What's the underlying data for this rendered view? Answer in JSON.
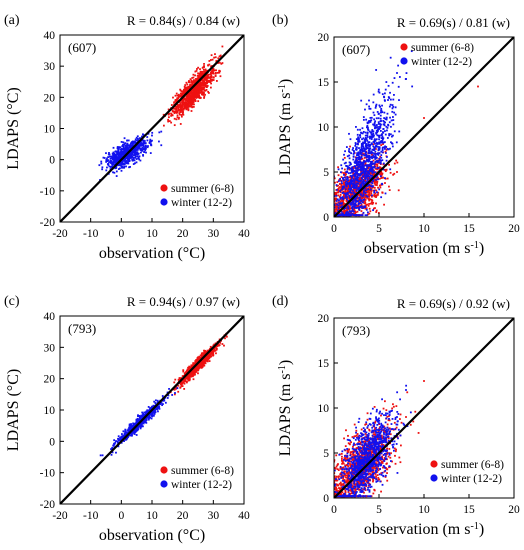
{
  "colors": {
    "summer": "#ee1111",
    "winter": "#1111ee",
    "axis": "#000000",
    "identity_line": "#000000"
  },
  "chart_data": [
    {
      "type": "scatter",
      "panel_label": "(a)",
      "station": "(607)",
      "r_text": "R = 0.84(s) / 0.84 (w)",
      "xlabel": "observation (°C)",
      "ylabel": "LDAPS (°C)",
      "xlim": [
        -20,
        40
      ],
      "ylim": [
        -20,
        40
      ],
      "xticks": [
        -20,
        -10,
        0,
        10,
        20,
        30,
        40
      ],
      "yticks": [
        -20,
        -10,
        0,
        10,
        20,
        30,
        40
      ],
      "legend_position": "bottom-right",
      "identity_line": true,
      "series": [
        {
          "name": "summer (6-8)",
          "color": "#ee1111",
          "center": [
            23.5,
            22
          ],
          "spread": [
            3.5,
            2.2
          ],
          "slope": 0.95,
          "count": 900,
          "sample_points": [
            [
              18,
              17
            ],
            [
              22,
              20
            ],
            [
              25,
              23
            ],
            [
              28,
              26
            ],
            [
              30,
              28
            ],
            [
              20,
              19
            ],
            [
              26,
              24
            ]
          ]
        },
        {
          "name": "winter (12-2)",
          "color": "#1111ee",
          "center": [
            2,
            2
          ],
          "spread": [
            3.5,
            1.8
          ],
          "slope": 0.5,
          "count": 700,
          "sample_points": [
            [
              -6,
              -6
            ],
            [
              -2,
              0
            ],
            [
              0,
              2
            ],
            [
              3,
              3
            ],
            [
              5,
              4
            ],
            [
              8,
              4
            ],
            [
              1,
              5
            ]
          ]
        }
      ]
    },
    {
      "type": "scatter",
      "panel_label": "(b)",
      "station": "(607)",
      "r_text": "R = 0.69(s) / 0.81 (w)",
      "xlabel": "observation (m s-1)",
      "ylabel": "LDAPS (m s-1)",
      "unit_base": "m s",
      "unit_exp": "-1",
      "xlim": [
        0,
        20
      ],
      "ylim": [
        0,
        20
      ],
      "xticks": [
        0,
        5,
        10,
        15,
        20
      ],
      "yticks": [
        0,
        5,
        10,
        15,
        20
      ],
      "legend_position": "top-left",
      "identity_line": true,
      "series": [
        {
          "name": "summer (6-8)",
          "color": "#ee1111",
          "center": [
            2.5,
            2.8
          ],
          "spread": [
            1.6,
            1.5
          ],
          "slope": 0.7,
          "count": 1100,
          "sample_points": [
            [
              1,
              1.5
            ],
            [
              2,
              3
            ],
            [
              3,
              4
            ],
            [
              5,
              6
            ],
            [
              7,
              5
            ],
            [
              10,
              11
            ],
            [
              16,
              14.5
            ]
          ]
        },
        {
          "name": "winter (12-2)",
          "color": "#1111ee",
          "center": [
            3.2,
            5.5
          ],
          "spread": [
            1.6,
            2.5
          ],
          "slope": 1.6,
          "count": 1100,
          "sample_points": [
            [
              1,
              2
            ],
            [
              2,
              4
            ],
            [
              3,
              6
            ],
            [
              4,
              8
            ],
            [
              5,
              10
            ],
            [
              6,
              13
            ],
            [
              7,
              16
            ]
          ]
        }
      ]
    },
    {
      "type": "scatter",
      "panel_label": "(c)",
      "station": "(793)",
      "r_text": "R = 0.94(s) / 0.97 (w)",
      "xlabel": "observation (°C)",
      "ylabel": "LDAPS (°C)",
      "xlim": [
        -20,
        40
      ],
      "ylim": [
        -20,
        40
      ],
      "xticks": [
        -20,
        -10,
        0,
        10,
        20,
        30,
        40
      ],
      "yticks": [
        -20,
        -10,
        0,
        10,
        20,
        30,
        40
      ],
      "legend_position": "bottom-right",
      "identity_line": true,
      "series": [
        {
          "name": "summer (6-8)",
          "color": "#ee1111",
          "center": [
            25,
            24.5
          ],
          "spread": [
            3,
            1.0
          ],
          "slope": 0.95,
          "count": 900,
          "sample_points": [
            [
              18,
              18
            ],
            [
              22,
              22
            ],
            [
              25,
              25
            ],
            [
              28,
              27
            ],
            [
              30,
              29
            ],
            [
              20,
              20
            ]
          ]
        },
        {
          "name": "winter (12-2)",
          "color": "#1111ee",
          "center": [
            6,
            6
          ],
          "spread": [
            4,
            0.9
          ],
          "slope": 0.9,
          "count": 700,
          "sample_points": [
            [
              -1,
              -1
            ],
            [
              2,
              2
            ],
            [
              5,
              5
            ],
            [
              8,
              8
            ],
            [
              11,
              10
            ],
            [
              14,
              13
            ]
          ]
        }
      ]
    },
    {
      "type": "scatter",
      "panel_label": "(d)",
      "station": "(793)",
      "r_text": "R = 0.69(s) / 0.92 (w)",
      "xlabel": "observation (m s-1)",
      "ylabel": "LDAPS (m s-1)",
      "unit_base": "m s",
      "unit_exp": "-1",
      "xlim": [
        0,
        20
      ],
      "ylim": [
        0,
        20
      ],
      "xticks": [
        0,
        5,
        10,
        15,
        20
      ],
      "yticks": [
        0,
        5,
        10,
        15,
        20
      ],
      "legend_position": "bottom-right",
      "identity_line": true,
      "series": [
        {
          "name": "summer (6-8)",
          "color": "#ee1111",
          "center": [
            3,
            3.5
          ],
          "spread": [
            1.8,
            1.8
          ],
          "slope": 0.9,
          "count": 1200,
          "sample_points": [
            [
              1,
              1
            ],
            [
              2,
              3
            ],
            [
              3,
              4
            ],
            [
              5,
              6
            ],
            [
              8,
              9
            ],
            [
              10,
              13
            ]
          ]
        },
        {
          "name": "winter (12-2)",
          "color": "#1111ee",
          "center": [
            3.6,
            4.3
          ],
          "spread": [
            1.5,
            1.9
          ],
          "slope": 1.1,
          "count": 1000,
          "sample_points": [
            [
              1,
              1
            ],
            [
              2,
              2.5
            ],
            [
              3,
              4
            ],
            [
              4,
              5
            ],
            [
              5,
              6.5
            ],
            [
              7,
              9
            ],
            [
              8,
              12
            ]
          ]
        }
      ]
    }
  ]
}
